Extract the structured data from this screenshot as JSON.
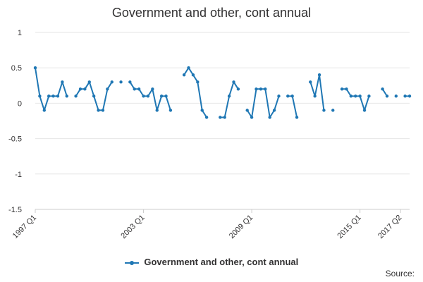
{
  "colors": {
    "series": "#1f77b4",
    "grid": "#e6e6e6",
    "text": "#323132"
  },
  "chart_data": {
    "type": "line",
    "title": "Government and other, cont annual",
    "xlabel": "",
    "ylabel": "",
    "ylim": [
      -1.5,
      1
    ],
    "yticks": [
      "1",
      "0.5",
      "0",
      "-0.5",
      "-1",
      "-1.5"
    ],
    "xticks": [
      "1997 Q1",
      "2003 Q1",
      "2009 Q1",
      "2015 Q1",
      "2017 Q2"
    ],
    "grid": true,
    "legend": "bottom",
    "series": [
      {
        "name": "Government and other, cont annual",
        "values": [
          0.5,
          0.1,
          -0.1,
          0.1,
          0.1,
          0.1,
          0.3,
          0.1,
          null,
          0.1,
          0.2,
          0.2,
          0.3,
          0.1,
          -0.1,
          -0.1,
          0.2,
          0.3,
          null,
          0.3,
          null,
          0.3,
          0.2,
          0.2,
          0.1,
          0.1,
          0.2,
          -0.1,
          0.1,
          0.1,
          -0.1,
          null,
          null,
          0.4,
          0.5,
          0.4,
          0.3,
          -0.1,
          -0.2,
          null,
          null,
          -0.2,
          -0.2,
          0.1,
          0.3,
          0.2,
          null,
          -0.1,
          -0.2,
          0.2,
          0.2,
          0.2,
          -0.2,
          -0.1,
          0.1,
          null,
          0.1,
          0.1,
          -0.2,
          null,
          null,
          0.3,
          0.1,
          0.4,
          -0.1,
          null,
          -0.1,
          null,
          0.2,
          0.2,
          0.1,
          0.1,
          0.1,
          -0.1,
          0.1,
          null,
          null,
          0.2,
          0.1,
          null,
          0.1,
          null,
          0.1,
          0.1
        ]
      }
    ]
  },
  "source_label": "Source:"
}
